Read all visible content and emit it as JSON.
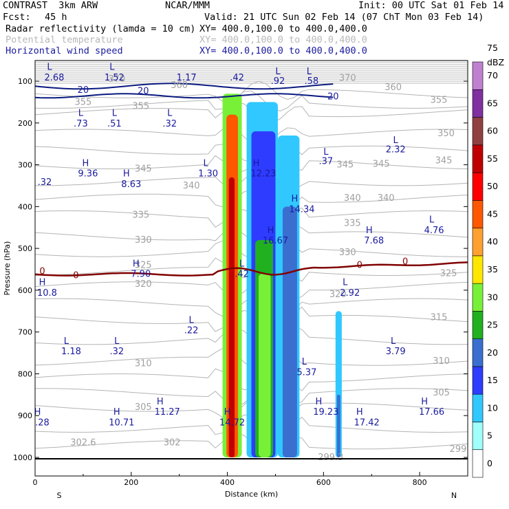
{
  "header": {
    "model": "CONTRAST  3km ARW",
    "center": "NCAR/MMM",
    "init": "Init: 00 UTC Sat 01 Feb 14",
    "fcst_label": "Fcst:",
    "fcst_value": "45 h",
    "valid": "Valid: 21 UTC Sun 02 Feb 14 (07 ChT Mon 03 Feb 14)",
    "fields": [
      {
        "name": "Radar reflectivity (lamda = 10 cm)",
        "xy": "XY= 400.0,100.0 to 400.0,400.0",
        "color": "#000000"
      },
      {
        "name": "Potential temperature",
        "xy": "XY= 400.0,100.0 to 400.0,400.0",
        "color": "#b8b8b8"
      },
      {
        "name": "Horizontal wind speed",
        "xy": "XY= 400.0,100.0 to 400.0,400.0",
        "color": "#1a1aa0"
      }
    ]
  },
  "chart_data": {
    "type": "heatmap",
    "xlabel": "Distance (km)",
    "ylabel": "Pressure (hPa)",
    "xlim": [
      0,
      900
    ],
    "ylim": [
      1000,
      50
    ],
    "x_ticks": [
      0,
      200,
      400,
      600,
      800
    ],
    "y_ticks": [
      100,
      200,
      300,
      400,
      500,
      600,
      700,
      800,
      900,
      1000
    ],
    "left_end_label": "S",
    "right_end_label": "N",
    "colorbar": {
      "unit": "dBZ",
      "levels": [
        0,
        5,
        10,
        15,
        20,
        25,
        30,
        35,
        40,
        45,
        50,
        55,
        60,
        65,
        70,
        75
      ],
      "colors": [
        "#ffffff",
        "#a0fffa",
        "#30c8ff",
        "#2e3cff",
        "#3a6fd0",
        "#20b020",
        "#78f038",
        "#ffe600",
        "#ffa030",
        "#ff5800",
        "#ff0000",
        "#c00000",
        "#904040",
        "#8030a0",
        "#c080d0"
      ]
    },
    "reflectivity_columns": [
      {
        "x0": 390,
        "x1": 430,
        "p_top": 130,
        "p_bot": 1000,
        "dbz": 30
      },
      {
        "x0": 398,
        "x1": 422,
        "p_top": 180,
        "p_bot": 1000,
        "dbz": 45
      },
      {
        "x0": 403,
        "x1": 415,
        "p_top": 330,
        "p_bot": 1000,
        "dbz": 55
      },
      {
        "x0": 440,
        "x1": 505,
        "p_top": 150,
        "p_bot": 1000,
        "dbz": 10
      },
      {
        "x0": 450,
        "x1": 500,
        "p_top": 220,
        "p_bot": 1000,
        "dbz": 15
      },
      {
        "x0": 458,
        "x1": 495,
        "p_top": 480,
        "p_bot": 1000,
        "dbz": 25
      },
      {
        "x0": 465,
        "x1": 490,
        "p_top": 560,
        "p_bot": 1000,
        "dbz": 30
      },
      {
        "x0": 505,
        "x1": 550,
        "p_top": 230,
        "p_bot": 1000,
        "dbz": 10
      },
      {
        "x0": 515,
        "x1": 545,
        "p_top": 400,
        "p_bot": 1000,
        "dbz": 20
      },
      {
        "x0": 625,
        "x1": 638,
        "p_top": 650,
        "p_bot": 1000,
        "dbz": 10
      },
      {
        "x0": 628,
        "x1": 635,
        "p_top": 850,
        "p_bot": 1000,
        "dbz": 20
      }
    ],
    "theta_contour_labels": [
      {
        "text": "370",
        "x": 170,
        "p": 95
      },
      {
        "text": "370",
        "x": 650,
        "p": 93
      },
      {
        "text": "360",
        "x": 300,
        "p": 110
      },
      {
        "text": "360",
        "x": 745,
        "p": 115
      },
      {
        "text": "355",
        "x": 100,
        "p": 150
      },
      {
        "text": "355",
        "x": 220,
        "p": 160
      },
      {
        "text": "355",
        "x": 840,
        "p": 145
      },
      {
        "text": "350",
        "x": 855,
        "p": 225
      },
      {
        "text": "345",
        "x": 225,
        "p": 310
      },
      {
        "text": "345",
        "x": 645,
        "p": 300
      },
      {
        "text": "345",
        "x": 720,
        "p": 298
      },
      {
        "text": "345",
        "x": 850,
        "p": 290
      },
      {
        "text": "340",
        "x": 325,
        "p": 350
      },
      {
        "text": "340",
        "x": 660,
        "p": 380
      },
      {
        "text": "340",
        "x": 730,
        "p": 380
      },
      {
        "text": "335",
        "x": 220,
        "p": 420
      },
      {
        "text": "335",
        "x": 660,
        "p": 440
      },
      {
        "text": "330",
        "x": 225,
        "p": 480
      },
      {
        "text": "330",
        "x": 650,
        "p": 510
      },
      {
        "text": "325",
        "x": 225,
        "p": 540
      },
      {
        "text": "325",
        "x": 860,
        "p": 560
      },
      {
        "text": "320",
        "x": 225,
        "p": 585
      },
      {
        "text": "320",
        "x": 630,
        "p": 610
      },
      {
        "text": "315",
        "x": 840,
        "p": 665
      },
      {
        "text": "310",
        "x": 225,
        "p": 775
      },
      {
        "text": "310",
        "x": 845,
        "p": 770
      },
      {
        "text": "305",
        "x": 225,
        "p": 880
      },
      {
        "text": "305",
        "x": 845,
        "p": 845
      },
      {
        "text": "302.6",
        "x": 100,
        "p": 965
      },
      {
        "text": "302",
        "x": 285,
        "p": 965
      },
      {
        "text": "299.3",
        "x": 615,
        "p": 1000
      },
      {
        "text": "299",
        "x": 880,
        "p": 980
      }
    ],
    "wind_labels": [
      {
        "text": "2.68",
        "x": 40,
        "p": 90
      },
      {
        "text": "L",
        "x": 30,
        "p": 65
      },
      {
        "text": "1.52",
        "x": 165,
        "p": 90
      },
      {
        "text": "L",
        "x": 160,
        "p": 65
      },
      {
        "text": "1.17",
        "x": 315,
        "p": 90
      },
      {
        "text": ".42",
        "x": 420,
        "p": 90
      },
      {
        "text": "L",
        "x": 505,
        "p": 75
      },
      {
        "text": ".92",
        "x": 505,
        "p": 98
      },
      {
        "text": "L",
        "x": 570,
        "p": 75
      },
      {
        "text": ".58",
        "x": 575,
        "p": 98
      },
      {
        "text": "L",
        "x": 95,
        "p": 175
      },
      {
        "text": ".73",
        "x": 95,
        "p": 200
      },
      {
        "text": "L",
        "x": 165,
        "p": 175
      },
      {
        "text": ".51",
        "x": 165,
        "p": 200
      },
      {
        "text": "L",
        "x": 280,
        "p": 175
      },
      {
        "text": ".32",
        "x": 280,
        "p": 200
      },
      {
        "text": "L",
        "x": 605,
        "p": 268
      },
      {
        "text": ".37",
        "x": 605,
        "p": 290
      },
      {
        "text": "L",
        "x": 750,
        "p": 240
      },
      {
        "text": "2.32",
        "x": 750,
        "p": 262
      },
      {
        "text": "H",
        "x": 105,
        "p": 295
      },
      {
        "text": "9.36",
        "x": 110,
        "p": 320
      },
      {
        "text": "H",
        "x": 190,
        "p": 320
      },
      {
        "text": "8.63",
        "x": 200,
        "p": 345
      },
      {
        "text": "L",
        "x": 355,
        "p": 295
      },
      {
        "text": "1.30",
        "x": 360,
        "p": 320
      },
      {
        "text": "H",
        "x": 460,
        "p": 295
      },
      {
        "text": "12.23",
        "x": 475,
        "p": 320
      },
      {
        "text": ".32",
        "x": 20,
        "p": 340
      },
      {
        "text": "H",
        "x": 540,
        "p": 380
      },
      {
        "text": "14.34",
        "x": 555,
        "p": 405
      },
      {
        "text": "L",
        "x": 825,
        "p": 430
      },
      {
        "text": "4.76",
        "x": 830,
        "p": 455
      },
      {
        "text": "H",
        "x": 490,
        "p": 455
      },
      {
        "text": "16.67",
        "x": 500,
        "p": 480
      },
      {
        "text": "H",
        "x": 695,
        "p": 455
      },
      {
        "text": "7.68",
        "x": 705,
        "p": 480
      },
      {
        "text": "H",
        "x": 210,
        "p": 535
      },
      {
        "text": "7.90",
        "x": 220,
        "p": 560
      },
      {
        "text": "L",
        "x": 430,
        "p": 535
      },
      {
        "text": ".42",
        "x": 430,
        "p": 560
      },
      {
        "text": "H",
        "x": 15,
        "p": 580
      },
      {
        "text": "10.8",
        "x": 25,
        "p": 605
      },
      {
        "text": "L",
        "x": 645,
        "p": 580
      },
      {
        "text": "2.92",
        "x": 655,
        "p": 605
      },
      {
        "text": "L",
        "x": 325,
        "p": 670
      },
      {
        "text": ".22",
        "x": 325,
        "p": 695
      },
      {
        "text": "L",
        "x": 65,
        "p": 720
      },
      {
        "text": "1.18",
        "x": 75,
        "p": 745
      },
      {
        "text": "L",
        "x": 170,
        "p": 720
      },
      {
        "text": ".32",
        "x": 170,
        "p": 745
      },
      {
        "text": "L",
        "x": 745,
        "p": 720
      },
      {
        "text": "3.79",
        "x": 750,
        "p": 745
      },
      {
        "text": "L",
        "x": 560,
        "p": 770
      },
      {
        "text": "5.37",
        "x": 565,
        "p": 795
      },
      {
        "text": "H",
        "x": 260,
        "p": 865
      },
      {
        "text": "11.27",
        "x": 275,
        "p": 890
      },
      {
        "text": "H",
        "x": 590,
        "p": 865
      },
      {
        "text": "19.23",
        "x": 605,
        "p": 890
      },
      {
        "text": "H",
        "x": 810,
        "p": 865
      },
      {
        "text": "17.66",
        "x": 825,
        "p": 890
      },
      {
        "text": "H",
        "x": 5,
        "p": 890
      },
      {
        "text": ".28",
        "x": 15,
        "p": 915
      },
      {
        "text": "H",
        "x": 170,
        "p": 890
      },
      {
        "text": "10.71",
        "x": 180,
        "p": 915
      },
      {
        "text": "H",
        "x": 400,
        "p": 890
      },
      {
        "text": "14.72",
        "x": 410,
        "p": 915
      },
      {
        "text": "H",
        "x": 675,
        "p": 890
      },
      {
        "text": "17.42",
        "x": 690,
        "p": 915
      }
    ],
    "wind_contour_labels": [
      {
        "text": "20",
        "x": 100,
        "p": 120
      },
      {
        "text": "20",
        "x": 225,
        "p": 122
      },
      {
        "text": "20",
        "x": 620,
        "p": 135
      }
    ],
    "zero_contour_labels": [
      {
        "text": "0",
        "x": 15,
        "p": 555
      },
      {
        "text": "0",
        "x": 85,
        "p": 565
      },
      {
        "text": "0",
        "x": 675,
        "p": 540
      },
      {
        "text": "0",
        "x": 770,
        "p": 532
      }
    ]
  }
}
